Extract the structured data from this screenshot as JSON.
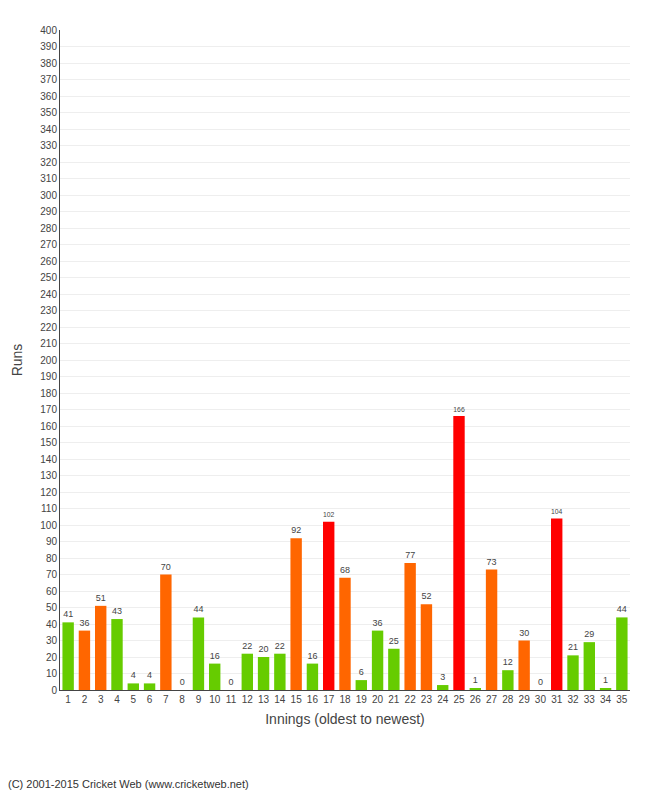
{
  "chart_data": {
    "type": "bar",
    "xlabel": "Innings (oldest to newest)",
    "ylabel": "Runs",
    "annotations": [
      "(C) 2001-2015 Cricket Web (www.cricketweb.net)"
    ],
    "categories": [
      "1",
      "2",
      "3",
      "4",
      "5",
      "6",
      "7",
      "8",
      "9",
      "10",
      "11",
      "12",
      "13",
      "14",
      "15",
      "16",
      "17",
      "18",
      "19",
      "20",
      "21",
      "22",
      "23",
      "24",
      "25",
      "26",
      "27",
      "28",
      "29",
      "30",
      "31",
      "32",
      "33",
      "34",
      "35"
    ],
    "values": [
      41,
      36,
      51,
      43,
      4,
      4,
      70,
      0,
      44,
      16,
      0,
      22,
      20,
      22,
      92,
      16,
      102,
      68,
      6,
      36,
      25,
      77,
      52,
      3,
      166,
      1,
      73,
      12,
      30,
      0,
      104,
      21,
      29,
      1,
      44
    ],
    "colors": [
      "#66cc00",
      "#ff6600",
      "#ff6600",
      "#66cc00",
      "#66cc00",
      "#66cc00",
      "#ff6600",
      "#66cc00",
      "#66cc00",
      "#66cc00",
      "#66cc00",
      "#66cc00",
      "#66cc00",
      "#66cc00",
      "#ff6600",
      "#66cc00",
      "#ff0000",
      "#ff6600",
      "#66cc00",
      "#66cc00",
      "#66cc00",
      "#ff6600",
      "#ff6600",
      "#66cc00",
      "#ff0000",
      "#66cc00",
      "#ff6600",
      "#66cc00",
      "#ff6600",
      "#66cc00",
      "#ff0000",
      "#66cc00",
      "#66cc00",
      "#66cc00",
      "#66cc00"
    ],
    "ylim": [
      0,
      400
    ],
    "yticks": [
      0,
      10,
      20,
      30,
      40,
      50,
      60,
      70,
      80,
      90,
      100,
      110,
      120,
      130,
      140,
      150,
      160,
      170,
      180,
      190,
      200,
      210,
      220,
      230,
      240,
      250,
      260,
      270,
      280,
      290,
      300,
      310,
      320,
      330,
      340,
      350,
      360,
      370,
      380,
      390,
      400
    ],
    "grid": true,
    "data_labels": true
  }
}
